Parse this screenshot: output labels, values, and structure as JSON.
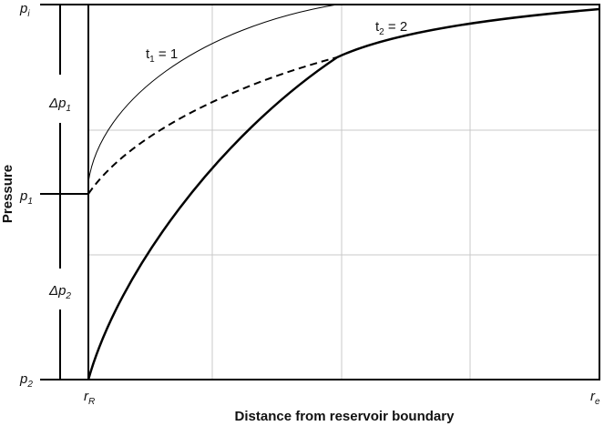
{
  "y_axis": {
    "title": "Pressure",
    "labels": [
      {
        "symbol": "p",
        "sub": "i"
      },
      {
        "symbol": "p",
        "sub": "1"
      },
      {
        "symbol": "p",
        "sub": "2"
      }
    ],
    "deltas": [
      {
        "symbol": "Δp",
        "sub": "1"
      },
      {
        "symbol": "Δp",
        "sub": "2"
      }
    ]
  },
  "x_axis": {
    "title": "Distance from reservoir boundary",
    "labels": [
      {
        "symbol": "r",
        "sub": "R"
      },
      {
        "symbol": "r",
        "sub": "e"
      }
    ]
  },
  "curves": [
    {
      "symbol": "t",
      "sub": "1",
      "rest": " = 1"
    },
    {
      "symbol": "t",
      "sub": "2",
      "rest": " = 2"
    }
  ]
}
